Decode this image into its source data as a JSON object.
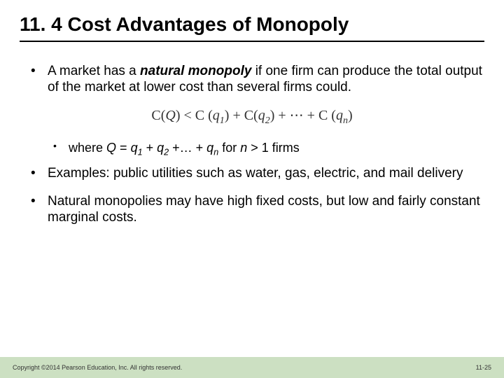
{
  "title": "11. 4  Cost Advantages of Monopoly",
  "bullets": {
    "b1_pre": "A market has a ",
    "b1_term": "natural monopoly",
    "b1_post": " if one firm can produce the total output of the market at lower cost than several firms could.",
    "formula": "C(Q) < C (q₁) + C(q₂) + ⋯ + C (qₙ)",
    "b2_pre": "where ",
    "b2_Q": "Q",
    "b2_eq": " = ",
    "b2_q1": "q",
    "b2_s1": "1",
    "b2_plus1": " + ",
    "b2_q2": "q",
    "b2_s2": "2",
    "b2_plus2": " +… + ",
    "b2_qn": "q",
    "b2_sn": "n",
    "b2_for": " for ",
    "b2_n": "n",
    "b2_tail": " > 1 firms",
    "b3": "Examples:  public utilities such as water, gas, electric, and mail delivery",
    "b4": "Natural monopolies may have high fixed costs, but low and fairly constant marginal costs."
  },
  "footer": {
    "copyright": "Copyright ©2014 Pearson Education, Inc. All rights reserved.",
    "page": "11-25"
  },
  "colors": {
    "footer_bg": "#cce0c2",
    "rule": "#000000",
    "text": "#000000"
  }
}
